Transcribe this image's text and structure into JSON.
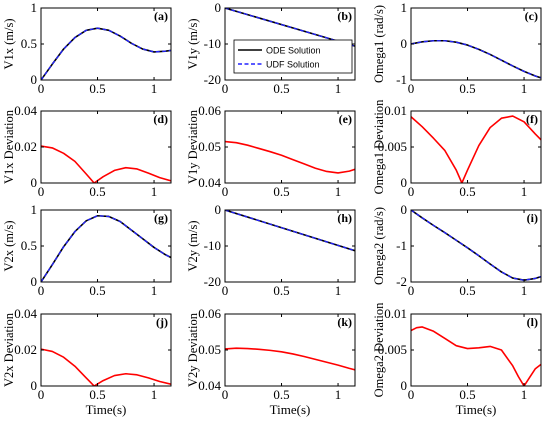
{
  "colors": {
    "ode": "#000000",
    "udf": "#2222ff",
    "deviation": "#ff0000",
    "frame": "#000000"
  },
  "legend": {
    "entries": [
      "ODE Solution",
      "UDF Solution"
    ],
    "placement": "inside panel (b), upper right"
  },
  "xlabel": "Time(s)",
  "chart_data": [
    {
      "id": "a",
      "tag": "(a)",
      "type": "line",
      "ylabel": "V1x (m/s)",
      "xlim": [
        0,
        1.15
      ],
      "ylim": [
        0,
        1
      ],
      "xticks": [
        "0",
        "0.5",
        "1"
      ],
      "yticks": [
        "0",
        "0.5",
        "1"
      ],
      "x": [
        0,
        0.1,
        0.2,
        0.3,
        0.4,
        0.5,
        0.6,
        0.7,
        0.8,
        0.9,
        1.0,
        1.1,
        1.15
      ],
      "series": [
        {
          "name": "ODE Solution",
          "values": [
            0,
            0.22,
            0.43,
            0.59,
            0.69,
            0.72,
            0.69,
            0.61,
            0.51,
            0.43,
            0.39,
            0.4,
            0.41
          ]
        },
        {
          "name": "UDF Solution",
          "values": [
            0,
            0.22,
            0.43,
            0.59,
            0.69,
            0.72,
            0.69,
            0.61,
            0.51,
            0.43,
            0.39,
            0.4,
            0.41
          ]
        }
      ]
    },
    {
      "id": "b",
      "tag": "(b)",
      "type": "line",
      "ylabel": "V1y (m/s)",
      "xlim": [
        0,
        1.15
      ],
      "ylim": [
        -20,
        0
      ],
      "xticks": [
        "0",
        "0.5",
        "1"
      ],
      "yticks": [
        "-20",
        "-10",
        "0"
      ],
      "x": [
        0,
        1.15
      ],
      "series": [
        {
          "name": "ODE Solution",
          "values": [
            0,
            -10.6
          ]
        },
        {
          "name": "UDF Solution",
          "values": [
            0,
            -10.6
          ]
        }
      ]
    },
    {
      "id": "c",
      "tag": "(c)",
      "type": "line",
      "ylabel": "Omega1 (rad/s)",
      "xlim": [
        0,
        1.15
      ],
      "ylim": [
        -1,
        1
      ],
      "xticks": [
        "0",
        "0.5",
        "1"
      ],
      "yticks": [
        "-1",
        "0",
        "1"
      ],
      "x": [
        0,
        0.1,
        0.2,
        0.3,
        0.4,
        0.5,
        0.6,
        0.7,
        0.8,
        0.9,
        1.0,
        1.1,
        1.15
      ],
      "series": [
        {
          "name": "ODE Solution",
          "values": [
            0,
            0.06,
            0.09,
            0.09,
            0.05,
            -0.03,
            -0.15,
            -0.29,
            -0.45,
            -0.61,
            -0.76,
            -0.89,
            -0.94
          ]
        },
        {
          "name": "UDF Solution",
          "values": [
            0,
            0.06,
            0.09,
            0.09,
            0.05,
            -0.03,
            -0.15,
            -0.29,
            -0.45,
            -0.61,
            -0.76,
            -0.89,
            -0.94
          ]
        }
      ]
    },
    {
      "id": "d",
      "tag": "(d)",
      "type": "line",
      "ylabel": "V1x Deviation",
      "xlim": [
        0,
        1.15
      ],
      "ylim": [
        0,
        0.04
      ],
      "xticks": [
        "0",
        "0.5",
        "1"
      ],
      "yticks": [
        "0",
        "0.02",
        "0.04"
      ],
      "x": [
        0,
        0.1,
        0.2,
        0.3,
        0.4,
        0.47,
        0.55,
        0.65,
        0.75,
        0.85,
        0.95,
        1.05,
        1.15
      ],
      "series": [
        {
          "values": [
            0.0205,
            0.0195,
            0.0165,
            0.012,
            0.005,
            0,
            0.0035,
            0.007,
            0.0085,
            0.0078,
            0.0055,
            0.003,
            0.0012
          ]
        }
      ]
    },
    {
      "id": "e",
      "tag": "(e)",
      "type": "line",
      "ylabel": "V1y Deviation",
      "xlim": [
        0,
        1.15
      ],
      "ylim": [
        0.04,
        0.06
      ],
      "xticks": [
        "0",
        "0.5",
        "1"
      ],
      "yticks": [
        "0.04",
        "0.05",
        "0.06"
      ],
      "x": [
        0,
        0.1,
        0.2,
        0.3,
        0.4,
        0.5,
        0.6,
        0.7,
        0.8,
        0.9,
        1.0,
        1.1,
        1.15
      ],
      "series": [
        {
          "values": [
            0.0515,
            0.0512,
            0.0505,
            0.0496,
            0.0487,
            0.0477,
            0.0465,
            0.0453,
            0.0441,
            0.0432,
            0.0428,
            0.0433,
            0.0438
          ]
        }
      ]
    },
    {
      "id": "f",
      "tag": "(f)",
      "type": "line",
      "ylabel": "Omega1 Deviation",
      "xlim": [
        0,
        1.15
      ],
      "ylim": [
        0,
        0.01
      ],
      "xticks": [
        "0",
        "0.5",
        "1"
      ],
      "yticks": [
        "0",
        "0.005",
        "0.01"
      ],
      "x": [
        0,
        0.1,
        0.2,
        0.3,
        0.4,
        0.45,
        0.5,
        0.6,
        0.7,
        0.8,
        0.9,
        1.0,
        1.1,
        1.15
      ],
      "series": [
        {
          "values": [
            0.0092,
            0.0078,
            0.0062,
            0.0045,
            0.0018,
            0,
            0.0018,
            0.0052,
            0.0077,
            0.009,
            0.0093,
            0.0085,
            0.0068,
            0.006
          ]
        }
      ]
    },
    {
      "id": "g",
      "tag": "(g)",
      "type": "line",
      "ylabel": "V2x (m/s)",
      "xlim": [
        0,
        1.15
      ],
      "ylim": [
        0,
        1
      ],
      "xticks": [
        "0",
        "0.5",
        "1"
      ],
      "yticks": [
        "0",
        "0.5",
        "1"
      ],
      "x": [
        0,
        0.1,
        0.2,
        0.3,
        0.4,
        0.5,
        0.6,
        0.7,
        0.8,
        0.9,
        1.0,
        1.1,
        1.15
      ],
      "series": [
        {
          "name": "ODE Solution",
          "values": [
            0,
            0.24,
            0.49,
            0.7,
            0.85,
            0.92,
            0.91,
            0.84,
            0.72,
            0.6,
            0.48,
            0.38,
            0.34
          ]
        },
        {
          "name": "UDF Solution",
          "values": [
            0,
            0.24,
            0.49,
            0.7,
            0.85,
            0.92,
            0.91,
            0.84,
            0.72,
            0.6,
            0.48,
            0.38,
            0.34
          ]
        }
      ]
    },
    {
      "id": "h",
      "tag": "(h)",
      "type": "line",
      "ylabel": "V2y (m/s)",
      "xlim": [
        0,
        1.15
      ],
      "ylim": [
        -20,
        0
      ],
      "xticks": [
        "0",
        "0.5",
        "1"
      ],
      "yticks": [
        "-20",
        "-10",
        "0"
      ],
      "x": [
        0,
        1.15
      ],
      "series": [
        {
          "name": "ODE Solution",
          "values": [
            0,
            -11.3
          ]
        },
        {
          "name": "UDF Solution",
          "values": [
            0,
            -11.3
          ]
        }
      ]
    },
    {
      "id": "i",
      "tag": "(i)",
      "type": "line",
      "ylabel": "Omega2 (rad/s)",
      "xlim": [
        0,
        1.15
      ],
      "ylim": [
        -2,
        0
      ],
      "xticks": [
        "0",
        "0.5",
        "1"
      ],
      "yticks": [
        "-2",
        "-1",
        "0"
      ],
      "x": [
        0,
        0.1,
        0.2,
        0.3,
        0.4,
        0.5,
        0.6,
        0.7,
        0.8,
        0.9,
        1.0,
        1.1,
        1.15
      ],
      "series": [
        {
          "name": "ODE Solution",
          "values": [
            0,
            -0.22,
            -0.43,
            -0.63,
            -0.84,
            -1.05,
            -1.27,
            -1.5,
            -1.72,
            -1.89,
            -1.95,
            -1.9,
            -1.85
          ]
        },
        {
          "name": "UDF Solution",
          "values": [
            0,
            -0.22,
            -0.43,
            -0.63,
            -0.84,
            -1.05,
            -1.27,
            -1.5,
            -1.72,
            -1.89,
            -1.95,
            -1.9,
            -1.85
          ]
        }
      ]
    },
    {
      "id": "j",
      "tag": "(j)",
      "type": "line",
      "ylabel": "V2x Deviation",
      "xlim": [
        0,
        1.15
      ],
      "ylim": [
        0,
        0.04
      ],
      "xticks": [
        "0",
        "0.5",
        "1"
      ],
      "yticks": [
        "0",
        "0.02",
        "0.04"
      ],
      "xlabel": "Time(s)",
      "x": [
        0,
        0.1,
        0.2,
        0.3,
        0.4,
        0.47,
        0.55,
        0.65,
        0.75,
        0.85,
        0.95,
        1.05,
        1.15
      ],
      "series": [
        {
          "values": [
            0.0205,
            0.0192,
            0.016,
            0.011,
            0.0045,
            0,
            0.003,
            0.0058,
            0.0068,
            0.0062,
            0.0045,
            0.0025,
            0.001
          ]
        }
      ]
    },
    {
      "id": "k",
      "tag": "(k)",
      "type": "line",
      "ylabel": "V2y Deviation",
      "xlim": [
        0,
        1.15
      ],
      "ylim": [
        0.04,
        0.06
      ],
      "xticks": [
        "0",
        "0.5",
        "1"
      ],
      "yticks": [
        "0.04",
        "0.05",
        "0.06"
      ],
      "xlabel": "Time(s)",
      "x": [
        0,
        0.1,
        0.2,
        0.3,
        0.4,
        0.5,
        0.6,
        0.7,
        0.8,
        0.9,
        1.0,
        1.1,
        1.15
      ],
      "series": [
        {
          "values": [
            0.0503,
            0.0505,
            0.0504,
            0.0502,
            0.0499,
            0.0495,
            0.0489,
            0.0482,
            0.0474,
            0.0466,
            0.0458,
            0.0449,
            0.0445
          ]
        }
      ]
    },
    {
      "id": "l",
      "tag": "(l)",
      "type": "line",
      "ylabel": "Omega2 Deviation",
      "xlim": [
        0,
        1.15
      ],
      "ylim": [
        0,
        0.01
      ],
      "xticks": [
        "0",
        "0.5",
        "1"
      ],
      "yticks": [
        "0",
        "0.005",
        "0.01"
      ],
      "xlabel": "Time(s)",
      "x": [
        0,
        0.05,
        0.1,
        0.2,
        0.3,
        0.4,
        0.5,
        0.6,
        0.7,
        0.8,
        0.9,
        0.95,
        1.0,
        1.05,
        1.1,
        1.15
      ],
      "series": [
        {
          "values": [
            0.0077,
            0.0081,
            0.0082,
            0.0076,
            0.0066,
            0.0056,
            0.0052,
            0.0053,
            0.0055,
            0.005,
            0.0028,
            0.0013,
            0,
            0.0012,
            0.0024,
            0.003
          ]
        }
      ]
    }
  ]
}
